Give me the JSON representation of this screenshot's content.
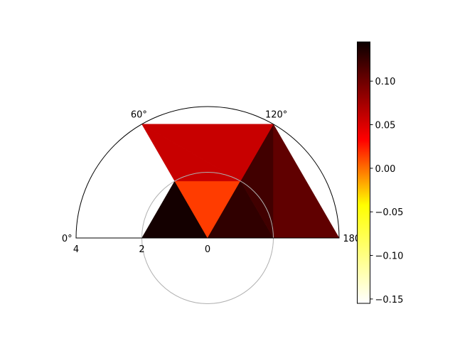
{
  "chart_data": {
    "type": "heatmap",
    "projection": "polar",
    "theta_range_deg": [
      0,
      180
    ],
    "r_range": [
      0,
      4
    ],
    "r_axis_inverted": true,
    "theta_ticks": [
      {
        "deg": 0,
        "label": "0°"
      },
      {
        "deg": 60,
        "label": "60°"
      },
      {
        "deg": 120,
        "label": "120°"
      },
      {
        "deg": 180,
        "label": "180°"
      }
    ],
    "r_ticks": [
      {
        "value": 4,
        "label": "4"
      },
      {
        "value": 2,
        "label": "2"
      },
      {
        "value": 0,
        "label": "0"
      }
    ],
    "grid_circle_r": 2,
    "colormap": "hot_r",
    "colorbar": {
      "vmin": -0.155,
      "vmax": 0.145,
      "ticks": [
        {
          "value": 0.1,
          "label": "0.10"
        },
        {
          "value": 0.05,
          "label": "0.05"
        },
        {
          "value": 0.0,
          "label": "0.00"
        },
        {
          "value": -0.05,
          "label": "−0.05"
        },
        {
          "value": -0.1,
          "label": "−0.10"
        },
        {
          "value": -0.15,
          "label": "−0.15"
        }
      ]
    },
    "triangles": [
      {
        "vertices": [
          [
            0,
            0
          ],
          [
            2,
            0
          ],
          [
            2,
            60
          ]
        ],
        "value": 0.141
      },
      {
        "vertices": [
          [
            0,
            0
          ],
          [
            2,
            60
          ],
          [
            2,
            120
          ]
        ],
        "value": 0.015
      },
      {
        "vertices": [
          [
            0,
            0
          ],
          [
            2,
            120
          ],
          [
            2,
            180
          ]
        ],
        "value": 0.128
      },
      {
        "vertices": [
          [
            2,
            180
          ],
          [
            2,
            120
          ],
          [
            4,
            120
          ]
        ],
        "value": 0.12
      },
      {
        "vertices": [
          [
            2,
            180
          ],
          [
            4,
            120
          ],
          [
            4,
            180
          ]
        ],
        "value": 0.106
      },
      {
        "vertices": [
          [
            2,
            120
          ],
          [
            4,
            120
          ],
          [
            4,
            60
          ]
        ],
        "value": 0.058
      },
      {
        "vertices": [
          [
            2,
            120
          ],
          [
            4,
            60
          ],
          [
            2,
            60
          ]
        ],
        "value": 0.058
      }
    ]
  }
}
